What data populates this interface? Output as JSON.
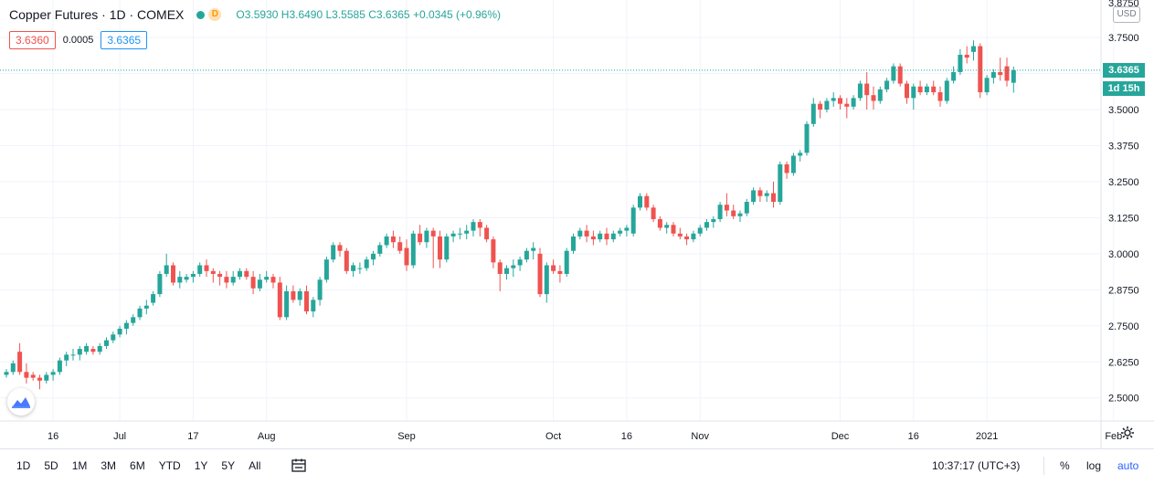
{
  "header": {
    "symbol": "Copper Futures · 1D · COMEX",
    "badge": "D",
    "open": "O3.5930",
    "high": "H3.6490",
    "low": "L3.5585",
    "close": "C3.6365",
    "change": "+0.0345 (+0.96%)",
    "bid": "3.6360",
    "spread": "0.0005",
    "ask": "3.6365"
  },
  "price_scale": {
    "currency": "USD",
    "last_price_label": "3.6365",
    "countdown_label": "1d 15h",
    "top_cut_label": "3.8750"
  },
  "bottom_bar": {
    "ranges": [
      "1D",
      "5D",
      "1M",
      "3M",
      "6M",
      "YTD",
      "1Y",
      "5Y",
      "All"
    ],
    "clock": "10:37:17 (UTC+3)",
    "percent": "%",
    "log": "log",
    "auto": "auto"
  },
  "colors": {
    "up": "#26a69a",
    "down": "#ef5350",
    "grid": "#f0f3fa",
    "axis_text": "#131722"
  },
  "icons": {
    "calendar": "calendar-range-icon",
    "settings": "gear-icon",
    "logo": "tradingview-logo-icon"
  },
  "chart_data": {
    "type": "candlestick",
    "title": "Copper Futures · 1D · COMEX",
    "ylabel": "",
    "currency": "USD",
    "ylim": [
      2.42,
      3.88
    ],
    "y_ticks": [
      2.5,
      2.625,
      2.75,
      2.875,
      3.0,
      3.125,
      3.25,
      3.375,
      3.5,
      3.625,
      3.75
    ],
    "y_tick_labels": [
      "2.5000",
      "2.6250",
      "2.7500",
      "2.8750",
      "3.0000",
      "3.1250",
      "3.2500",
      "3.3750",
      "3.5000",
      "3.6250",
      "3.7500"
    ],
    "x_ticks": [
      {
        "label": "16",
        "index": 7
      },
      {
        "label": "Jul",
        "index": 17
      },
      {
        "label": "17",
        "index": 28
      },
      {
        "label": "Aug",
        "index": 39
      },
      {
        "label": "Sep",
        "index": 60
      },
      {
        "label": "Oct",
        "index": 82
      },
      {
        "label": "16",
        "index": 93
      },
      {
        "label": "Nov",
        "index": 104
      },
      {
        "label": "Dec",
        "index": 125
      },
      {
        "label": "16",
        "index": 136
      },
      {
        "label": "2021",
        "index": 147
      },
      {
        "label": "Feb",
        "index": 166
      }
    ],
    "last_price": 3.6365,
    "grid": true,
    "candles": [
      [
        2.58,
        2.6,
        2.57,
        2.59
      ],
      [
        2.59,
        2.63,
        2.58,
        2.62
      ],
      [
        2.66,
        2.69,
        2.58,
        2.59
      ],
      [
        2.59,
        2.62,
        2.55,
        2.57
      ],
      [
        2.58,
        2.59,
        2.56,
        2.57
      ],
      [
        2.57,
        2.58,
        2.53,
        2.56
      ],
      [
        2.56,
        2.59,
        2.55,
        2.58
      ],
      [
        2.58,
        2.6,
        2.56,
        2.59
      ],
      [
        2.59,
        2.64,
        2.58,
        2.63
      ],
      [
        2.63,
        2.66,
        2.61,
        2.65
      ],
      [
        2.65,
        2.67,
        2.63,
        2.65
      ],
      [
        2.65,
        2.68,
        2.63,
        2.67
      ],
      [
        2.66,
        2.69,
        2.65,
        2.68
      ],
      [
        2.67,
        2.68,
        2.65,
        2.66
      ],
      [
        2.66,
        2.69,
        2.65,
        2.68
      ],
      [
        2.68,
        2.71,
        2.67,
        2.7
      ],
      [
        2.7,
        2.73,
        2.69,
        2.72
      ],
      [
        2.72,
        2.75,
        2.71,
        2.74
      ],
      [
        2.74,
        2.77,
        2.72,
        2.76
      ],
      [
        2.76,
        2.79,
        2.75,
        2.78
      ],
      [
        2.78,
        2.82,
        2.77,
        2.81
      ],
      [
        2.81,
        2.84,
        2.79,
        2.82
      ],
      [
        2.83,
        2.87,
        2.82,
        2.86
      ],
      [
        2.86,
        2.94,
        2.85,
        2.93
      ],
      [
        2.93,
        3.0,
        2.92,
        2.96
      ],
      [
        2.96,
        2.97,
        2.89,
        2.9
      ],
      [
        2.9,
        2.94,
        2.88,
        2.92
      ],
      [
        2.91,
        2.93,
        2.9,
        2.92
      ],
      [
        2.92,
        2.94,
        2.9,
        2.93
      ],
      [
        2.93,
        2.97,
        2.92,
        2.96
      ],
      [
        2.96,
        2.98,
        2.92,
        2.94
      ],
      [
        2.94,
        2.95,
        2.9,
        2.93
      ],
      [
        2.93,
        2.94,
        2.89,
        2.92
      ],
      [
        2.92,
        2.94,
        2.88,
        2.9
      ],
      [
        2.9,
        2.94,
        2.89,
        2.92
      ],
      [
        2.92,
        2.95,
        2.91,
        2.94
      ],
      [
        2.94,
        2.95,
        2.91,
        2.92
      ],
      [
        2.92,
        2.94,
        2.86,
        2.88
      ],
      [
        2.88,
        2.93,
        2.87,
        2.91
      ],
      [
        2.91,
        2.94,
        2.9,
        2.92
      ],
      [
        2.92,
        2.93,
        2.88,
        2.9
      ],
      [
        2.9,
        2.92,
        2.77,
        2.78
      ],
      [
        2.78,
        2.89,
        2.77,
        2.87
      ],
      [
        2.87,
        2.89,
        2.83,
        2.84
      ],
      [
        2.84,
        2.88,
        2.82,
        2.87
      ],
      [
        2.87,
        2.89,
        2.79,
        2.8
      ],
      [
        2.8,
        2.85,
        2.78,
        2.84
      ],
      [
        2.84,
        2.92,
        2.82,
        2.91
      ],
      [
        2.91,
        2.99,
        2.9,
        2.98
      ],
      [
        2.98,
        3.04,
        2.97,
        3.03
      ],
      [
        3.03,
        3.04,
        2.99,
        3.01
      ],
      [
        3.01,
        3.02,
        2.93,
        2.94
      ],
      [
        2.94,
        2.97,
        2.92,
        2.96
      ],
      [
        2.95,
        2.97,
        2.93,
        2.95
      ],
      [
        2.95,
        2.99,
        2.94,
        2.98
      ],
      [
        2.98,
        3.01,
        2.96,
        3.0
      ],
      [
        3.0,
        3.04,
        2.99,
        3.03
      ],
      [
        3.03,
        3.07,
        3.02,
        3.06
      ],
      [
        3.06,
        3.08,
        3.02,
        3.04
      ],
      [
        3.04,
        3.06,
        3.0,
        3.01
      ],
      [
        3.02,
        3.05,
        2.94,
        2.96
      ],
      [
        2.96,
        3.08,
        2.95,
        3.07
      ],
      [
        3.07,
        3.1,
        3.03,
        3.04
      ],
      [
        3.04,
        3.09,
        3.02,
        3.08
      ],
      [
        3.08,
        3.09,
        2.95,
        3.06
      ],
      [
        3.06,
        3.08,
        2.95,
        2.98
      ],
      [
        2.98,
        3.07,
        2.97,
        3.06
      ],
      [
        3.06,
        3.08,
        3.04,
        3.07
      ],
      [
        3.07,
        3.09,
        3.05,
        3.07
      ],
      [
        3.07,
        3.1,
        3.05,
        3.08
      ],
      [
        3.08,
        3.12,
        3.06,
        3.11
      ],
      [
        3.11,
        3.12,
        3.06,
        3.09
      ],
      [
        3.09,
        3.1,
        3.04,
        3.05
      ],
      [
        3.05,
        3.06,
        2.95,
        2.97
      ],
      [
        2.97,
        2.98,
        2.87,
        2.93
      ],
      [
        2.93,
        2.96,
        2.91,
        2.95
      ],
      [
        2.95,
        2.98,
        2.92,
        2.96
      ],
      [
        2.96,
        2.99,
        2.94,
        2.98
      ],
      [
        2.98,
        3.02,
        2.97,
        3.01
      ],
      [
        3.01,
        3.04,
        2.98,
        3.02
      ],
      [
        3.0,
        3.02,
        2.85,
        2.86
      ],
      [
        2.86,
        2.97,
        2.83,
        2.96
      ],
      [
        2.96,
        2.98,
        2.93,
        2.94
      ],
      [
        2.94,
        2.96,
        2.9,
        2.93
      ],
      [
        2.93,
        3.02,
        2.92,
        3.01
      ],
      [
        3.01,
        3.07,
        3.0,
        3.06
      ],
      [
        3.06,
        3.09,
        3.05,
        3.08
      ],
      [
        3.08,
        3.1,
        3.04,
        3.06
      ],
      [
        3.06,
        3.08,
        3.03,
        3.05
      ],
      [
        3.05,
        3.08,
        3.04,
        3.07
      ],
      [
        3.07,
        3.09,
        3.03,
        3.05
      ],
      [
        3.05,
        3.08,
        3.04,
        3.07
      ],
      [
        3.07,
        3.09,
        3.06,
        3.08
      ],
      [
        3.08,
        3.1,
        3.06,
        3.09
      ],
      [
        3.07,
        3.17,
        3.06,
        3.16
      ],
      [
        3.16,
        3.21,
        3.15,
        3.2
      ],
      [
        3.2,
        3.21,
        3.15,
        3.16
      ],
      [
        3.16,
        3.17,
        3.11,
        3.12
      ],
      [
        3.12,
        3.13,
        3.08,
        3.09
      ],
      [
        3.09,
        3.11,
        3.07,
        3.1
      ],
      [
        3.1,
        3.11,
        3.06,
        3.07
      ],
      [
        3.07,
        3.09,
        3.05,
        3.06
      ],
      [
        3.06,
        3.07,
        3.03,
        3.05
      ],
      [
        3.05,
        3.08,
        3.04,
        3.07
      ],
      [
        3.07,
        3.1,
        3.06,
        3.09
      ],
      [
        3.09,
        3.12,
        3.08,
        3.11
      ],
      [
        3.11,
        3.13,
        3.09,
        3.12
      ],
      [
        3.12,
        3.18,
        3.11,
        3.17
      ],
      [
        3.17,
        3.21,
        3.13,
        3.15
      ],
      [
        3.15,
        3.17,
        3.12,
        3.13
      ],
      [
        3.13,
        3.15,
        3.11,
        3.14
      ],
      [
        3.14,
        3.19,
        3.13,
        3.18
      ],
      [
        3.18,
        3.23,
        3.17,
        3.22
      ],
      [
        3.22,
        3.23,
        3.18,
        3.2
      ],
      [
        3.2,
        3.22,
        3.18,
        3.21
      ],
      [
        3.21,
        3.25,
        3.16,
        3.18
      ],
      [
        3.18,
        3.32,
        3.17,
        3.31
      ],
      [
        3.31,
        3.32,
        3.26,
        3.28
      ],
      [
        3.28,
        3.35,
        3.27,
        3.34
      ],
      [
        3.34,
        3.36,
        3.32,
        3.35
      ],
      [
        3.35,
        3.46,
        3.34,
        3.45
      ],
      [
        3.45,
        3.54,
        3.44,
        3.52
      ],
      [
        3.52,
        3.53,
        3.47,
        3.5
      ],
      [
        3.5,
        3.54,
        3.49,
        3.53
      ],
      [
        3.53,
        3.56,
        3.51,
        3.54
      ],
      [
        3.54,
        3.55,
        3.5,
        3.52
      ],
      [
        3.52,
        3.54,
        3.47,
        3.51
      ],
      [
        3.51,
        3.55,
        3.5,
        3.54
      ],
      [
        3.54,
        3.6,
        3.53,
        3.59
      ],
      [
        3.59,
        3.63,
        3.5,
        3.55
      ],
      [
        3.55,
        3.58,
        3.5,
        3.53
      ],
      [
        3.53,
        3.58,
        3.52,
        3.57
      ],
      [
        3.57,
        3.61,
        3.56,
        3.6
      ],
      [
        3.6,
        3.66,
        3.59,
        3.65
      ],
      [
        3.65,
        3.66,
        3.58,
        3.59
      ],
      [
        3.59,
        3.6,
        3.52,
        3.54
      ],
      [
        3.54,
        3.59,
        3.5,
        3.58
      ],
      [
        3.58,
        3.6,
        3.55,
        3.56
      ],
      [
        3.56,
        3.59,
        3.55,
        3.58
      ],
      [
        3.58,
        3.6,
        3.55,
        3.56
      ],
      [
        3.56,
        3.58,
        3.51,
        3.53
      ],
      [
        3.53,
        3.61,
        3.52,
        3.6
      ],
      [
        3.6,
        3.65,
        3.59,
        3.63
      ],
      [
        3.63,
        3.71,
        3.62,
        3.69
      ],
      [
        3.69,
        3.72,
        3.66,
        3.68
      ],
      [
        3.7,
        3.74,
        3.67,
        3.72
      ],
      [
        3.72,
        3.73,
        3.54,
        3.56
      ],
      [
        3.56,
        3.62,
        3.55,
        3.61
      ],
      [
        3.61,
        3.64,
        3.59,
        3.63
      ],
      [
        3.63,
        3.68,
        3.6,
        3.62
      ],
      [
        3.65,
        3.68,
        3.58,
        3.6
      ],
      [
        3.593,
        3.649,
        3.5585,
        3.6365
      ]
    ]
  }
}
